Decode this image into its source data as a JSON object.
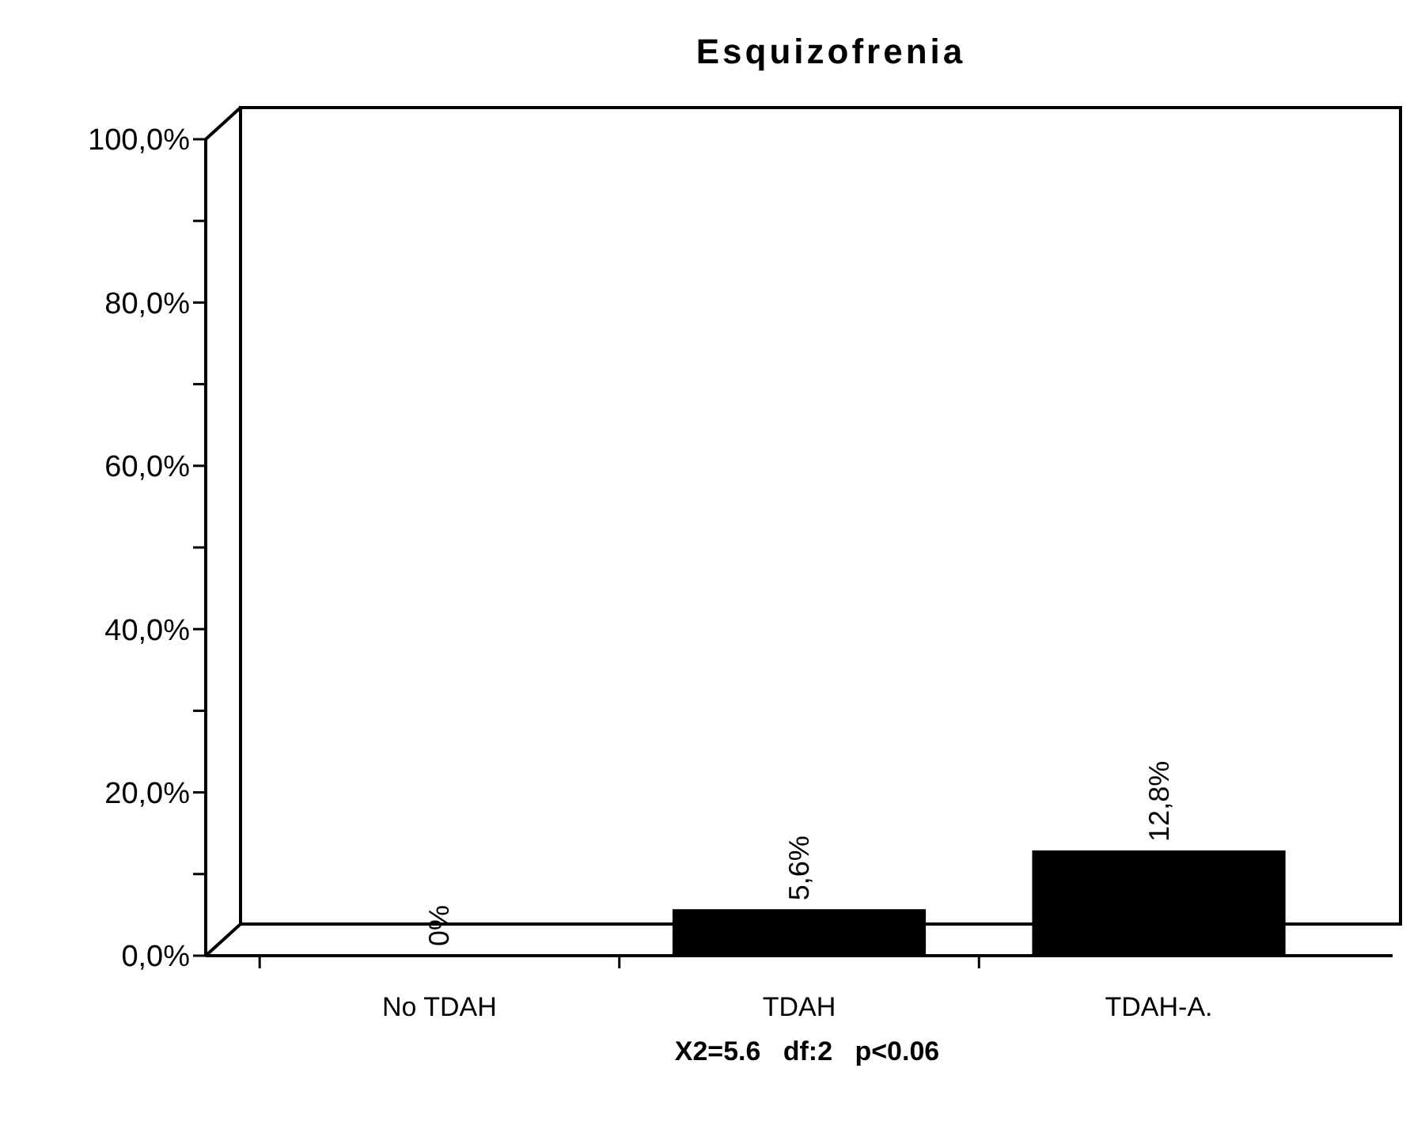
{
  "chart_data": {
    "type": "bar",
    "title": "Esquizofrenia",
    "categories": [
      "No TDAH",
      "TDAH",
      "TDAH-A."
    ],
    "values": [
      0,
      5.6,
      12.8
    ],
    "value_labels": [
      "0%",
      "5,6%",
      "12,8%"
    ],
    "color": "#000000",
    "ylim": [
      0,
      100
    ],
    "yticks": [
      {
        "value": 0,
        "label": "0,0%"
      },
      {
        "value": 10,
        "label": null
      },
      {
        "value": 20,
        "label": "20,0%"
      },
      {
        "value": 30,
        "label": null
      },
      {
        "value": 40,
        "label": "40,0%"
      },
      {
        "value": 50,
        "label": null
      },
      {
        "value": 60,
        "label": "60,0%"
      },
      {
        "value": 70,
        "label": null
      },
      {
        "value": 80,
        "label": "80,0%"
      },
      {
        "value": 90,
        "label": null
      },
      {
        "value": 100,
        "label": "100,0%"
      }
    ],
    "annotations": [
      "X2=5.6   df:2   p<0.06"
    ],
    "grid": false
  }
}
